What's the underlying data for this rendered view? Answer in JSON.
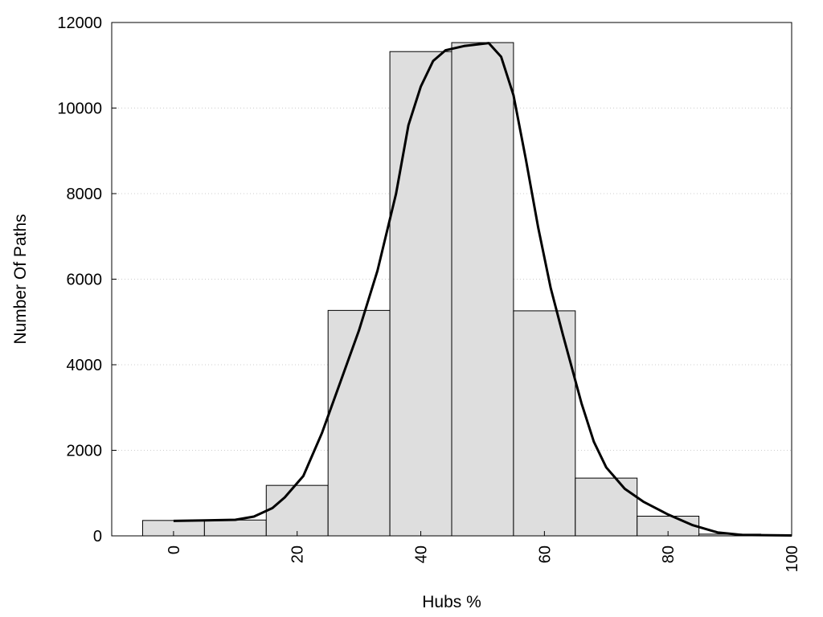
{
  "chart_data": {
    "type": "bar",
    "title": "",
    "xlabel": "Hubs %",
    "ylabel": "Number Of Paths",
    "xlim": [
      -10,
      100
    ],
    "ylim": [
      0,
      12000
    ],
    "x_ticks": [
      {
        "value": 0,
        "label": "0"
      },
      {
        "value": 20,
        "label": "20"
      },
      {
        "value": 40,
        "label": "40"
      },
      {
        "value": 60,
        "label": "60"
      },
      {
        "value": 80,
        "label": "80"
      },
      {
        "value": 100,
        "label": "100"
      }
    ],
    "y_ticks": [
      {
        "value": 0,
        "label": "0"
      },
      {
        "value": 2000,
        "label": "2000"
      },
      {
        "value": 4000,
        "label": "4000"
      },
      {
        "value": 6000,
        "label": "6000"
      },
      {
        "value": 8000,
        "label": "8000"
      },
      {
        "value": 10000,
        "label": "10000"
      },
      {
        "value": 12000,
        "label": "12000"
      }
    ],
    "grid": "horizontal dotted",
    "bin_width": 10,
    "bars": [
      {
        "x": 0,
        "value": 360
      },
      {
        "x": 10,
        "value": 370
      },
      {
        "x": 20,
        "value": 1180
      },
      {
        "x": 30,
        "value": 5270
      },
      {
        "x": 40,
        "value": 11320
      },
      {
        "x": 50,
        "value": 11530
      },
      {
        "x": 60,
        "value": 5260
      },
      {
        "x": 70,
        "value": 1350
      },
      {
        "x": 80,
        "value": 460
      },
      {
        "x": 90,
        "value": 40
      },
      {
        "x": 100,
        "value": 20
      }
    ],
    "curve": {
      "type": "line",
      "points": [
        [
          0,
          350
        ],
        [
          5,
          360
        ],
        [
          10,
          375
        ],
        [
          13,
          450
        ],
        [
          16,
          650
        ],
        [
          18,
          900
        ],
        [
          21,
          1400
        ],
        [
          24,
          2400
        ],
        [
          27,
          3600
        ],
        [
          30,
          4800
        ],
        [
          33,
          6200
        ],
        [
          36,
          8000
        ],
        [
          38,
          9600
        ],
        [
          40,
          10500
        ],
        [
          42,
          11100
        ],
        [
          44,
          11350
        ],
        [
          47,
          11450
        ],
        [
          51,
          11520
        ],
        [
          53,
          11200
        ],
        [
          55,
          10300
        ],
        [
          57,
          8800
        ],
        [
          59,
          7200
        ],
        [
          61,
          5800
        ],
        [
          63,
          4700
        ],
        [
          66,
          3100
        ],
        [
          68,
          2200
        ],
        [
          70,
          1600
        ],
        [
          73,
          1100
        ],
        [
          76,
          800
        ],
        [
          80,
          500
        ],
        [
          84,
          250
        ],
        [
          88,
          80
        ],
        [
          92,
          20
        ],
        [
          100,
          10
        ]
      ]
    },
    "colors": {
      "bar_fill": "#dedede",
      "bar_stroke": "#000000",
      "curve": "#000000",
      "grid": "#cccccc"
    }
  }
}
